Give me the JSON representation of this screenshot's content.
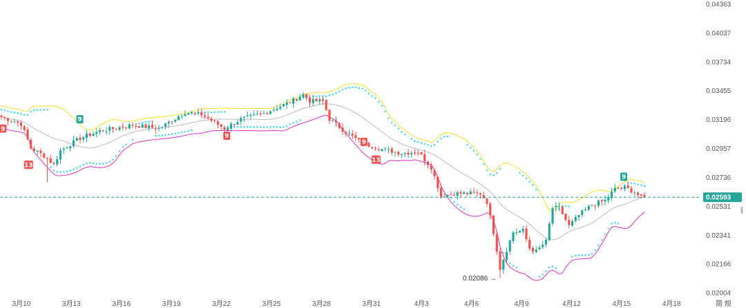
{
  "chart_data": {
    "type": "candlestick",
    "y_ticks": [
      "0.04363",
      "0.04037",
      "0.03734",
      "0.03455",
      "0.03196",
      "0.02957",
      "0.02736",
      "0.02531",
      "0.02341",
      "0.02166",
      "0.02004"
    ],
    "x_ticks": [
      "3月10",
      "3月13",
      "3月16",
      "3月19",
      "3月22",
      "3月25",
      "3月28",
      "3月31",
      "4月3",
      "4月6",
      "4月9",
      "4月12",
      "4月15",
      "4月18"
    ],
    "axis_corner_label": "简 规",
    "current_price": "0.02593",
    "low_annotation": "0.02086",
    "ylim": [
      0.0199,
      0.044
    ],
    "y_scale": "log",
    "grid": false,
    "colors": {
      "up": "#26a69a",
      "down": "#ef5350",
      "upper_band": "#f2e33b",
      "lower_band": "#e040c0",
      "mid_line": "#bdb8cc",
      "sar": "#4dd9e6",
      "price_line": "#26a69a"
    },
    "badges": [
      {
        "text": "9",
        "kind": "down",
        "x": 0.5,
        "price": 0.0312
      },
      {
        "text": "13",
        "kind": "down",
        "x": 8.3,
        "price": 0.0283
      },
      {
        "text": "9",
        "kind": "up",
        "x": 23.9,
        "price": 0.032
      },
      {
        "text": "9",
        "kind": "down",
        "x": 68.7,
        "price": 0.0306
      },
      {
        "text": "9",
        "kind": "down",
        "x": 110.5,
        "price": 0.0301
      },
      {
        "text": "13",
        "kind": "down",
        "x": 114.2,
        "price": 0.0287
      },
      {
        "text": "9",
        "kind": "up",
        "x": 189.7,
        "price": 0.0274
      }
    ]
  }
}
